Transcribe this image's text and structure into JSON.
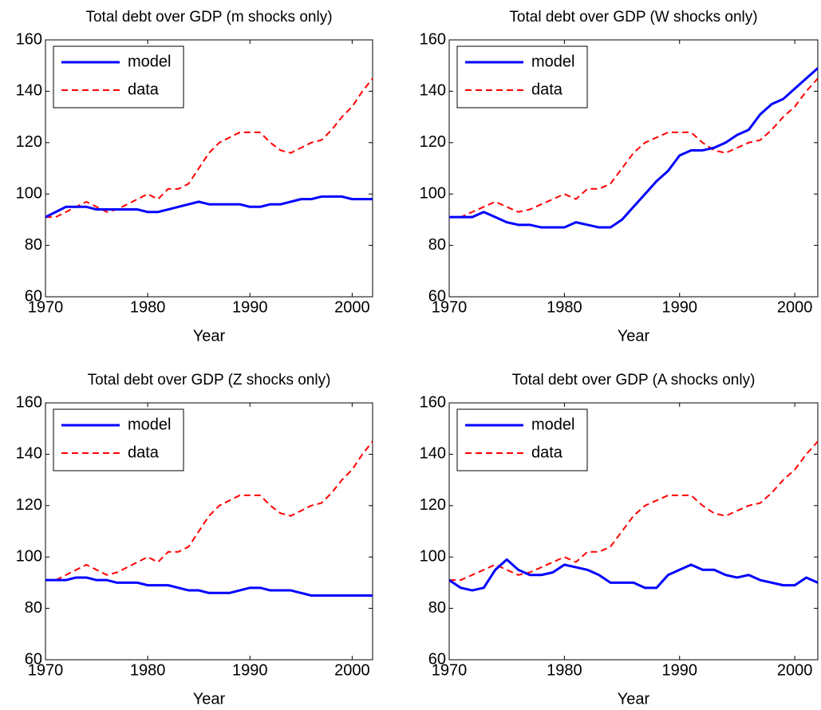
{
  "chart_data": [
    {
      "type": "line",
      "title": "Total debt over GDP (m shocks only)",
      "xlabel": "Year",
      "x": [
        1970,
        1971,
        1972,
        1973,
        1974,
        1975,
        1976,
        1977,
        1978,
        1979,
        1980,
        1981,
        1982,
        1983,
        1984,
        1985,
        1986,
        1987,
        1988,
        1989,
        1990,
        1991,
        1992,
        1993,
        1994,
        1995,
        1996,
        1997,
        1998,
        1999,
        2000,
        2001,
        2002
      ],
      "series": [
        {
          "name": "model",
          "color": "#0000ff",
          "style": "solid",
          "values": [
            91,
            93,
            95,
            95,
            95,
            94,
            94,
            94,
            94,
            94,
            93,
            93,
            94,
            95,
            96,
            97,
            96,
            96,
            96,
            96,
            95,
            95,
            96,
            96,
            97,
            98,
            98,
            99,
            99,
            99,
            98,
            98,
            98
          ]
        },
        {
          "name": "data",
          "color": "#ff0000",
          "style": "dashed",
          "values": [
            91,
            91,
            93,
            95,
            97,
            95,
            93,
            94,
            96,
            98,
            100,
            98,
            102,
            102,
            104,
            110,
            116,
            120,
            122,
            124,
            124,
            124,
            120,
            117,
            116,
            118,
            120,
            121,
            125,
            130,
            134,
            140,
            145
          ]
        }
      ],
      "xlim": [
        1970,
        2002
      ],
      "ylim": [
        60,
        160
      ],
      "xticks": [
        1970,
        1980,
        1990,
        2000
      ],
      "yticks": [
        60,
        80,
        100,
        120,
        140,
        160
      ],
      "legend": "upper left"
    },
    {
      "type": "line",
      "title": "Total debt over GDP (W shocks only)",
      "xlabel": "Year",
      "x": [
        1970,
        1971,
        1972,
        1973,
        1974,
        1975,
        1976,
        1977,
        1978,
        1979,
        1980,
        1981,
        1982,
        1983,
        1984,
        1985,
        1986,
        1987,
        1988,
        1989,
        1990,
        1991,
        1992,
        1993,
        1994,
        1995,
        1996,
        1997,
        1998,
        1999,
        2000,
        2001,
        2002
      ],
      "series": [
        {
          "name": "model",
          "color": "#0000ff",
          "style": "solid",
          "values": [
            91,
            91,
            91,
            93,
            91,
            89,
            88,
            88,
            87,
            87,
            87,
            89,
            88,
            87,
            87,
            90,
            95,
            100,
            105,
            109,
            115,
            117,
            117,
            118,
            120,
            123,
            125,
            131,
            135,
            137,
            141,
            145,
            149
          ]
        },
        {
          "name": "data",
          "color": "#ff0000",
          "style": "dashed",
          "values": [
            91,
            91,
            93,
            95,
            97,
            95,
            93,
            94,
            96,
            98,
            100,
            98,
            102,
            102,
            104,
            110,
            116,
            120,
            122,
            124,
            124,
            124,
            120,
            117,
            116,
            118,
            120,
            121,
            125,
            130,
            134,
            140,
            145
          ]
        }
      ],
      "xlim": [
        1970,
        2002
      ],
      "ylim": [
        60,
        160
      ],
      "xticks": [
        1970,
        1980,
        1990,
        2000
      ],
      "yticks": [
        60,
        80,
        100,
        120,
        140,
        160
      ],
      "legend": "upper left"
    },
    {
      "type": "line",
      "title": "Total debt over GDP (Z shocks only)",
      "xlabel": "Year",
      "x": [
        1970,
        1971,
        1972,
        1973,
        1974,
        1975,
        1976,
        1977,
        1978,
        1979,
        1980,
        1981,
        1982,
        1983,
        1984,
        1985,
        1986,
        1987,
        1988,
        1989,
        1990,
        1991,
        1992,
        1993,
        1994,
        1995,
        1996,
        1997,
        1998,
        1999,
        2000,
        2001,
        2002
      ],
      "series": [
        {
          "name": "model",
          "color": "#0000ff",
          "style": "solid",
          "values": [
            91,
            91,
            91,
            92,
            92,
            91,
            91,
            90,
            90,
            90,
            89,
            89,
            89,
            88,
            87,
            87,
            86,
            86,
            86,
            87,
            88,
            88,
            87,
            87,
            87,
            86,
            85,
            85,
            85,
            85,
            85,
            85,
            85
          ]
        },
        {
          "name": "data",
          "color": "#ff0000",
          "style": "dashed",
          "values": [
            91,
            91,
            93,
            95,
            97,
            95,
            93,
            94,
            96,
            98,
            100,
            98,
            102,
            102,
            104,
            110,
            116,
            120,
            122,
            124,
            124,
            124,
            120,
            117,
            116,
            118,
            120,
            121,
            125,
            130,
            134,
            140,
            145
          ]
        }
      ],
      "xlim": [
        1970,
        2002
      ],
      "ylim": [
        60,
        160
      ],
      "xticks": [
        1970,
        1980,
        1990,
        2000
      ],
      "yticks": [
        60,
        80,
        100,
        120,
        140,
        160
      ],
      "legend": "upper left"
    },
    {
      "type": "line",
      "title": "Total debt over GDP (A shocks only)",
      "xlabel": "Year",
      "x": [
        1970,
        1971,
        1972,
        1973,
        1974,
        1975,
        1976,
        1977,
        1978,
        1979,
        1980,
        1981,
        1982,
        1983,
        1984,
        1985,
        1986,
        1987,
        1988,
        1989,
        1990,
        1991,
        1992,
        1993,
        1994,
        1995,
        1996,
        1997,
        1998,
        1999,
        2000,
        2001,
        2002
      ],
      "series": [
        {
          "name": "model",
          "color": "#0000ff",
          "style": "solid",
          "values": [
            91,
            88,
            87,
            88,
            95,
            99,
            95,
            93,
            93,
            94,
            97,
            96,
            95,
            93,
            90,
            90,
            90,
            88,
            88,
            93,
            95,
            97,
            95,
            95,
            93,
            92,
            93,
            91,
            90,
            89,
            89,
            92,
            90
          ]
        },
        {
          "name": "data",
          "color": "#ff0000",
          "style": "dashed",
          "values": [
            91,
            91,
            93,
            95,
            97,
            95,
            93,
            94,
            96,
            98,
            100,
            98,
            102,
            102,
            104,
            110,
            116,
            120,
            122,
            124,
            124,
            124,
            120,
            117,
            116,
            118,
            120,
            121,
            125,
            130,
            134,
            140,
            145
          ]
        }
      ],
      "xlim": [
        1970,
        2002
      ],
      "ylim": [
        60,
        160
      ],
      "xticks": [
        1970,
        1980,
        1990,
        2000
      ],
      "yticks": [
        60,
        80,
        100,
        120,
        140,
        160
      ],
      "legend": "upper left"
    }
  ]
}
